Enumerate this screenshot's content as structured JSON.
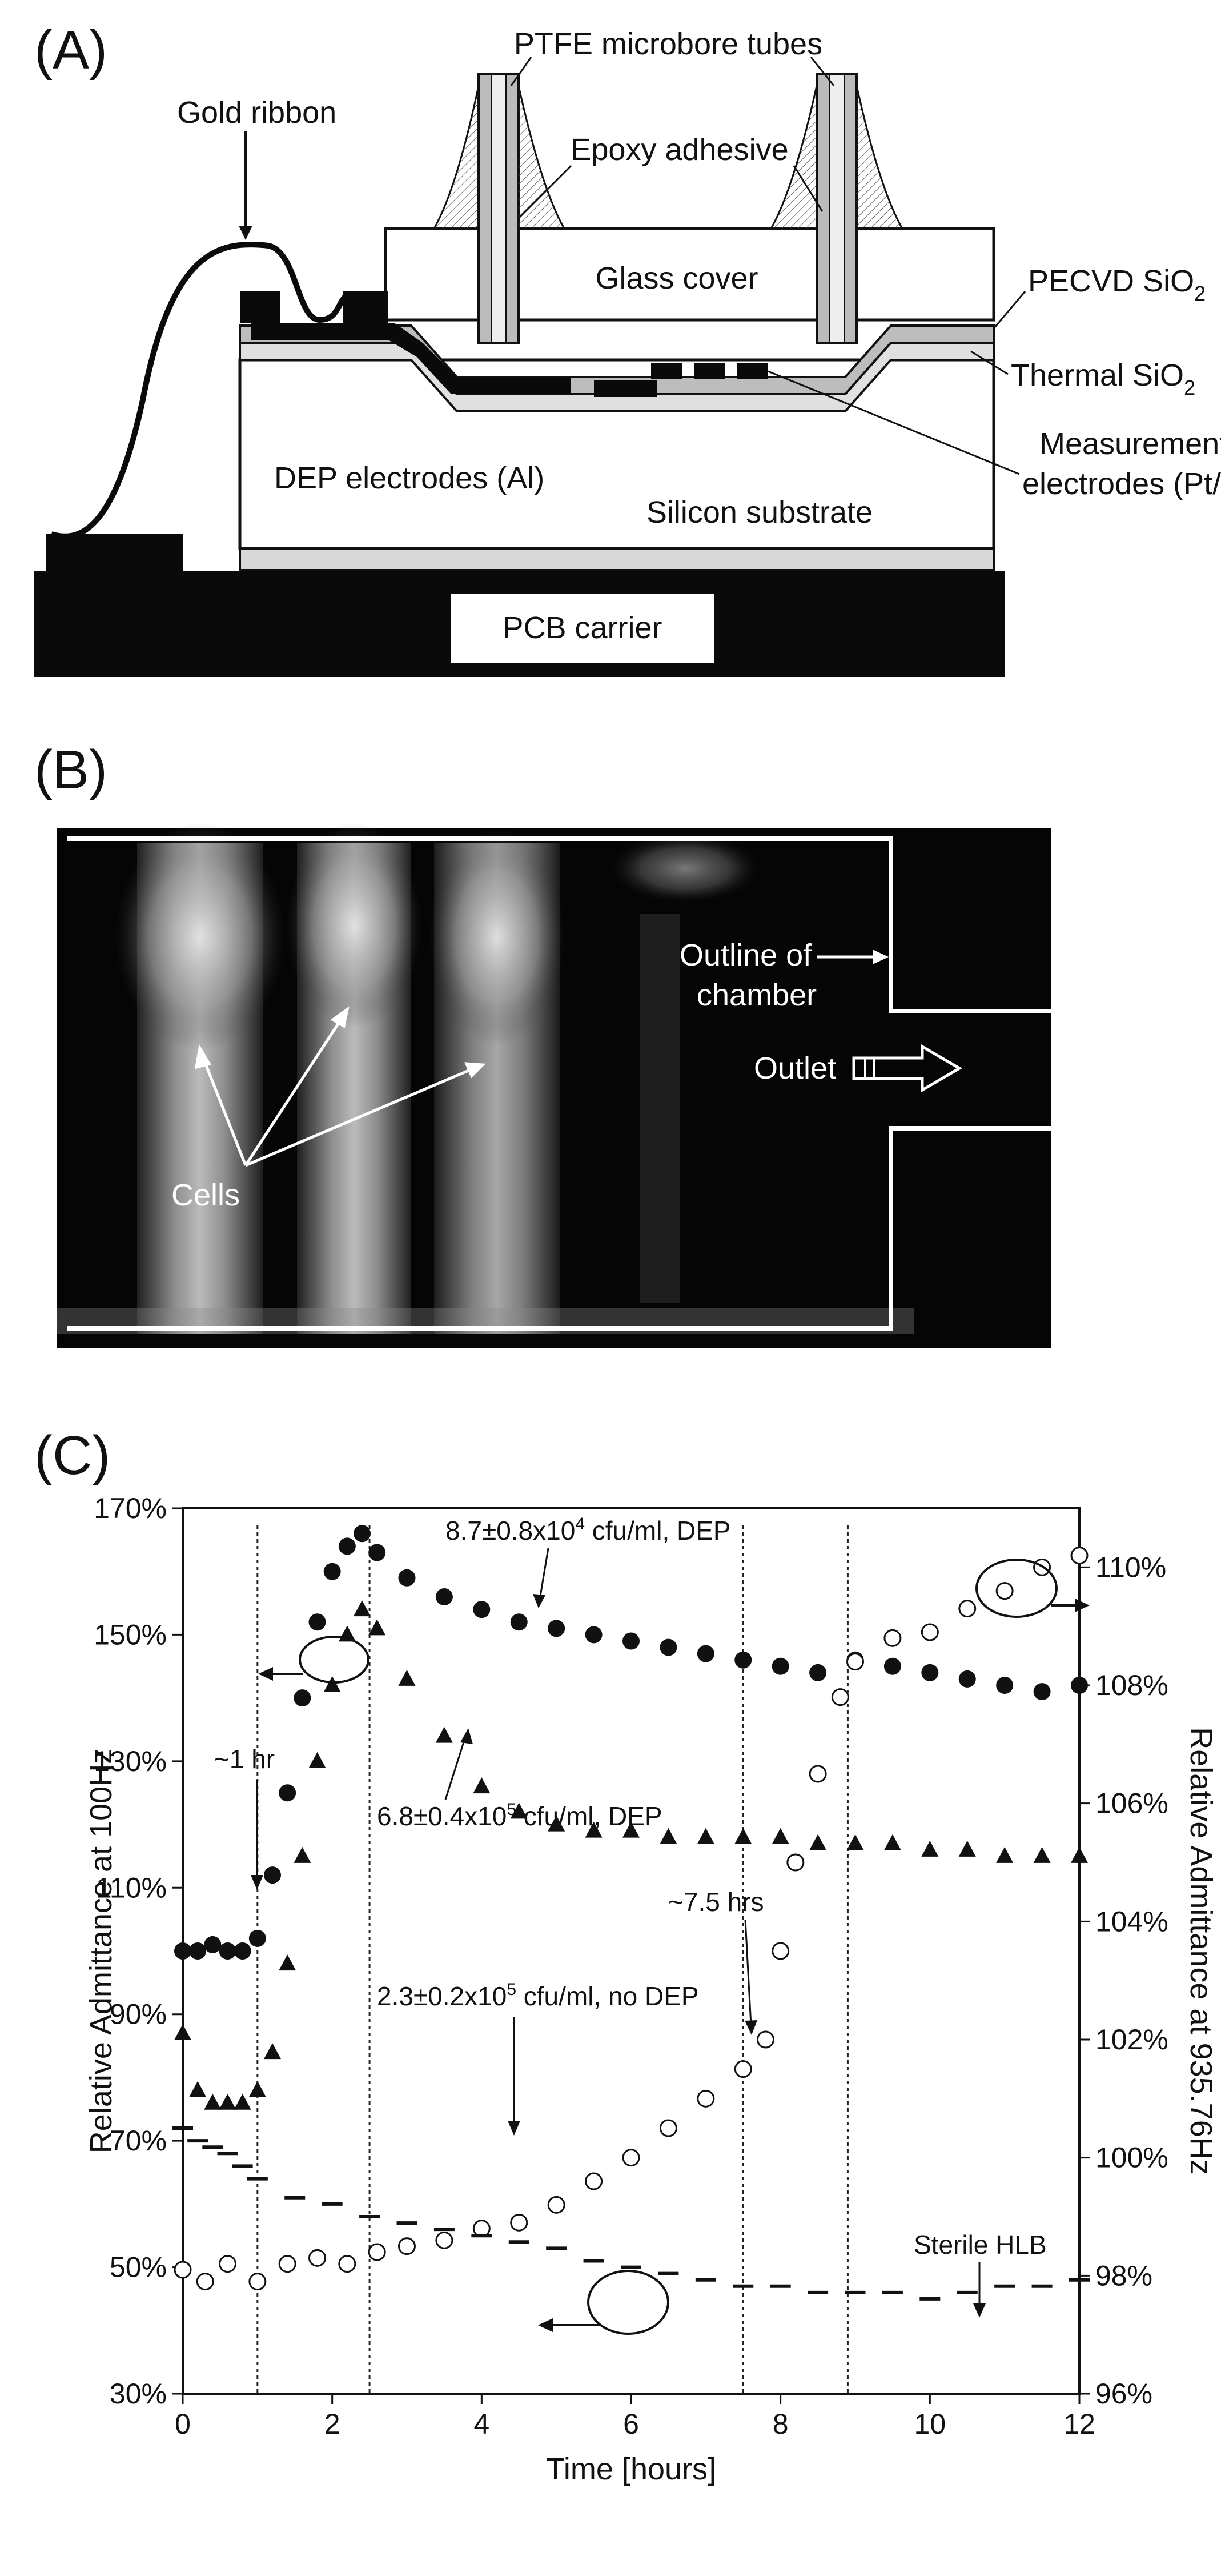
{
  "panel_a": {
    "label": "(A)",
    "gold_ribbon": "Gold ribbon",
    "ptfe": "PTFE microbore tubes",
    "epoxy": "Epoxy adhesive",
    "glass_cover": "Glass cover",
    "pecvd": "PECVD SiO",
    "pecvd_sub": "2",
    "thermal": "Thermal SiO",
    "thermal_sub": "2",
    "dep_electrodes": "DEP electrodes (Al)",
    "silicon": "Silicon substrate",
    "measurement_1": "Measurement",
    "measurement_2": "electrodes (Pt/Ti)",
    "pcb": "PCB carrier"
  },
  "panel_b": {
    "label": "(B)",
    "outline_1": "Outline of",
    "outline_2": "chamber",
    "outlet": "Outlet",
    "cells": "Cells"
  },
  "panel_c": {
    "label": "(C)",
    "ann_dep87_pre": "8.7±0.8x10",
    "ann_dep87_sup": "4",
    "ann_dep87_post": " cfu/ml, DEP",
    "ann_dep68_pre": "6.8±0.4x10",
    "ann_dep68_sup": "5",
    "ann_dep68_post": " cfu/ml, DEP",
    "ann_nodep_pre": "2.3±0.2x10",
    "ann_nodep_sup": "5",
    "ann_nodep_post": " cfu/ml, no DEP",
    "ann_1hr": "~1 hr",
    "ann_75hrs": "~7.5 hrs",
    "ann_sterile": "Sterile HLB"
  },
  "chart_data": {
    "type": "scatter",
    "xlabel": "Time [hours]",
    "ylabel": "Relative Admittance at 100Hz",
    "y2label": "Relative Admittance at 935.76Hz",
    "xlim": [
      0,
      12
    ],
    "ylim": [
      30,
      170
    ],
    "y2lim": [
      96,
      111
    ],
    "x_ticks": [
      "0",
      "2",
      "4",
      "6",
      "8",
      "10",
      "12"
    ],
    "y_ticks": [
      "30%",
      "50%",
      "70%",
      "90%",
      "110%",
      "130%",
      "150%",
      "170%"
    ],
    "y2_ticks": [
      "96%",
      "98%",
      "100%",
      "102%",
      "104%",
      "106%",
      "108%",
      "110%"
    ],
    "vlines": [
      1.0,
      2.5,
      7.5,
      8.9
    ],
    "series": [
      {
        "marker": "filled-circle",
        "axis": "left",
        "x": [
          0,
          0.2,
          0.4,
          0.6,
          0.8,
          1.0,
          1.2,
          1.4,
          1.6,
          1.8,
          2.0,
          2.2,
          2.4,
          2.6,
          3.0,
          3.5,
          4.0,
          4.5,
          5.0,
          5.5,
          6.0,
          6.5,
          7.0,
          7.5,
          8.0,
          8.5,
          9.0,
          9.5,
          10.0,
          10.5,
          11.0,
          11.5,
          12.0
        ],
        "y": [
          100,
          100,
          101,
          100,
          100,
          102,
          112,
          125,
          140,
          152,
          160,
          164,
          166,
          163,
          159,
          156,
          154,
          152,
          151,
          150,
          149,
          148,
          147,
          146,
          145,
          144,
          146,
          145,
          144,
          143,
          142,
          141,
          142
        ]
      },
      {
        "marker": "filled-triangle",
        "axis": "left",
        "x": [
          0,
          0.2,
          0.4,
          0.6,
          0.8,
          1.0,
          1.2,
          1.4,
          1.6,
          1.8,
          2.0,
          2.2,
          2.4,
          2.6,
          3.0,
          3.5,
          4.0,
          4.5,
          5.0,
          5.5,
          6.0,
          6.5,
          7.0,
          7.5,
          8.0,
          8.5,
          9.0,
          9.5,
          10.0,
          10.5,
          11.0,
          11.5,
          12.0
        ],
        "y": [
          87,
          78,
          76,
          76,
          76,
          78,
          84,
          98,
          115,
          130,
          142,
          150,
          154,
          151,
          143,
          134,
          126,
          122,
          120,
          119,
          119,
          118,
          118,
          118,
          118,
          117,
          117,
          117,
          116,
          116,
          115,
          115,
          115
        ]
      },
      {
        "marker": "open-circle",
        "axis": "right",
        "x": [
          0,
          0.3,
          0.6,
          1.0,
          1.4,
          1.8,
          2.2,
          2.6,
          3.0,
          3.5,
          4.0,
          4.5,
          5.0,
          5.5,
          6.0,
          6.5,
          7.0,
          7.5,
          7.8,
          8.0,
          8.2,
          8.5,
          8.8,
          9.0,
          9.5,
          10.0,
          10.5,
          11.0,
          11.5,
          12.0
        ],
        "y": [
          98.1,
          97.9,
          98.2,
          97.9,
          98.2,
          98.3,
          98.2,
          98.4,
          98.5,
          98.6,
          98.8,
          98.9,
          99.2,
          99.6,
          100.0,
          100.5,
          101.0,
          101.5,
          102.0,
          103.5,
          105.0,
          106.5,
          107.8,
          108.4,
          108.8,
          108.9,
          109.3,
          109.6,
          110.0,
          110.2
        ]
      },
      {
        "marker": "dash",
        "axis": "left",
        "x": [
          0,
          0.2,
          0.4,
          0.6,
          0.8,
          1.0,
          1.5,
          2.0,
          2.5,
          3.0,
          3.5,
          4.0,
          4.5,
          5.0,
          5.5,
          6.0,
          6.5,
          7.0,
          7.5,
          8.0,
          8.5,
          9.0,
          9.5,
          10.0,
          10.5,
          11.0,
          11.5,
          12.0
        ],
        "y": [
          72,
          70,
          69,
          68,
          66,
          64,
          61,
          60,
          58,
          57,
          56,
          55,
          54,
          53,
          51,
          50,
          49,
          48,
          47,
          47,
          46,
          46,
          46,
          45,
          46,
          47,
          47,
          48
        ]
      }
    ]
  }
}
